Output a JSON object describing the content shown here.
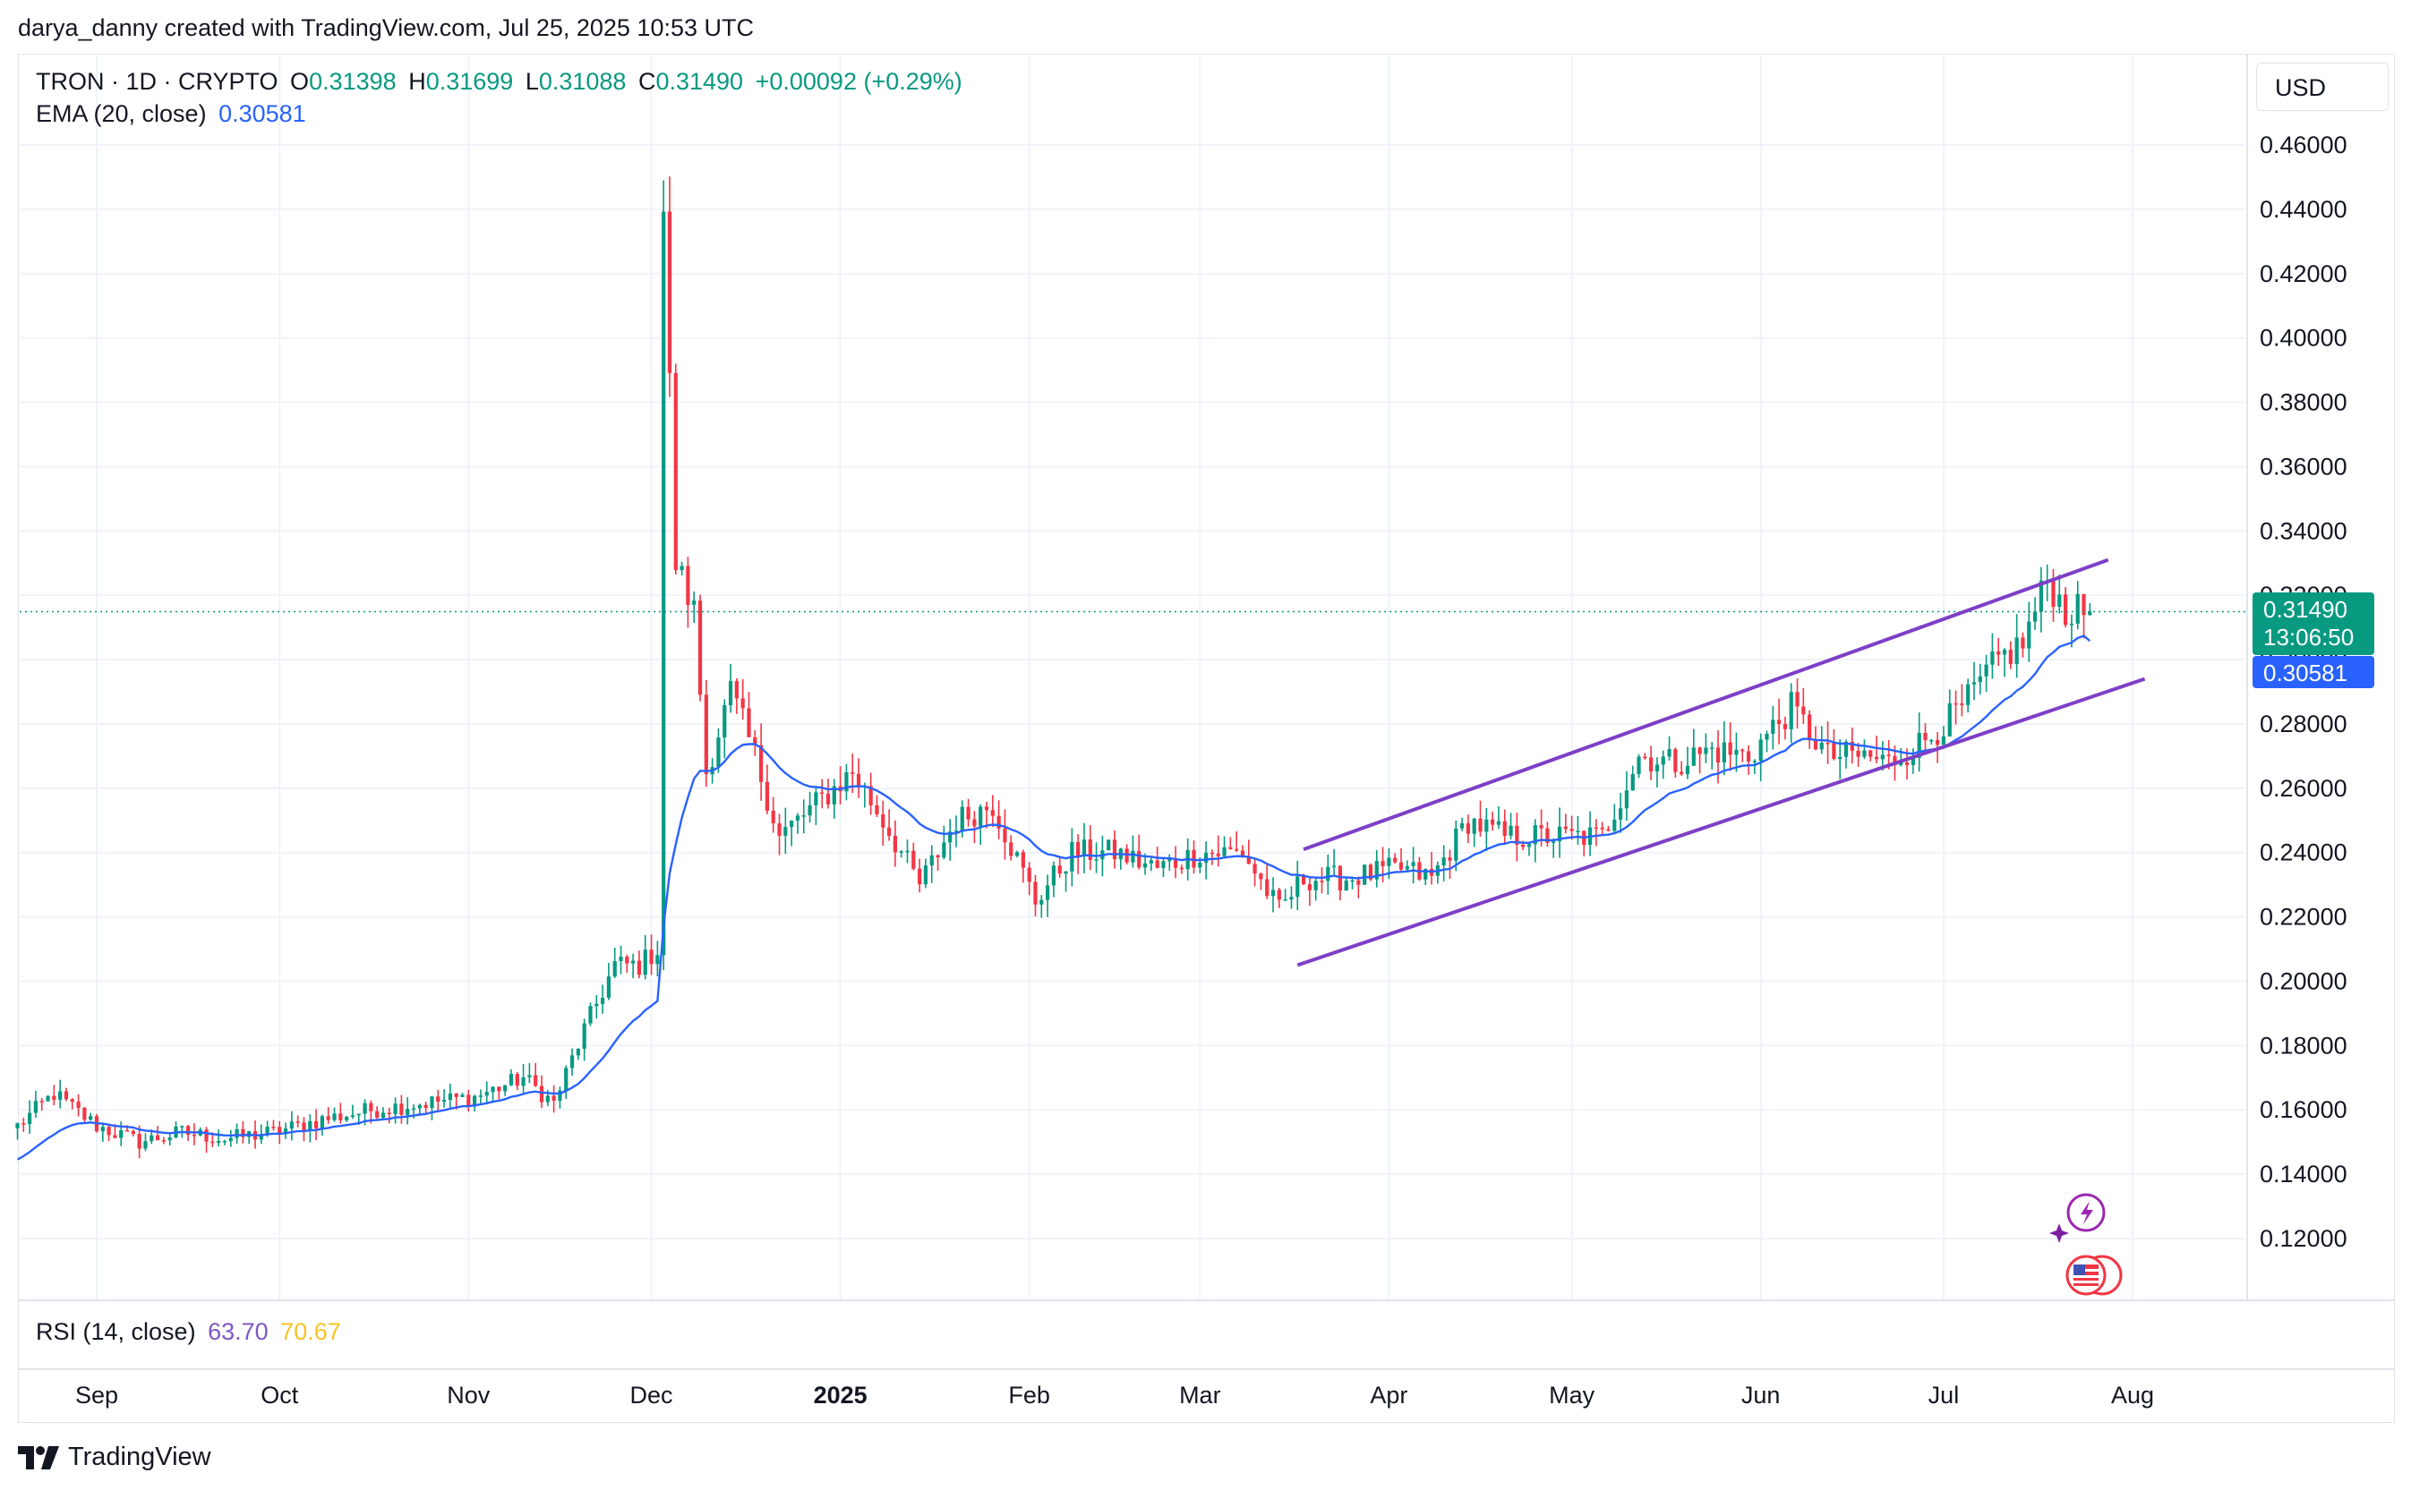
{
  "header": {
    "credit": "darya_danny created with TradingView.com, Jul 25, 2025 10:53 UTC"
  },
  "legend": {
    "symbol": "TRON · 1D · CRYPTO",
    "o_label": "O",
    "o_value": "0.31398",
    "h_label": "H",
    "h_value": "0.31699",
    "l_label": "L",
    "l_value": "0.31088",
    "c_label": "C",
    "c_value": "0.31490",
    "change": "+0.00092 (+0.29%)",
    "ema_label": "EMA (20, close)",
    "ema_value": "0.30581"
  },
  "rsi": {
    "label": "RSI (14, close)",
    "value": "63.70",
    "ma_value": "70.67"
  },
  "currency": "USD",
  "price_badge": {
    "price": "0.31490",
    "countdown": "13:06:50",
    "ema": "0.30581"
  },
  "brand": {
    "logo_text": "TradingView"
  },
  "colors": {
    "up": "#089981",
    "down": "#f23645",
    "ema": "#2962ff",
    "channel": "#7e3fc7",
    "grid": "#f0f3fa",
    "rsi": "#7e57c2",
    "rsi_ma": "#f7c325"
  },
  "chart_data": {
    "type": "candlestick",
    "ylim": [
      0.105,
      0.47
    ],
    "y_ticks": [
      "0.12000",
      "0.14000",
      "0.16000",
      "0.18000",
      "0.20000",
      "0.22000",
      "0.24000",
      "0.26000",
      "0.28000",
      "0.30000",
      "0.32000",
      "0.34000",
      "0.36000",
      "0.38000",
      "0.40000",
      "0.42000",
      "0.44000",
      "0.46000"
    ],
    "x_ticks": [
      {
        "label": "Sep",
        "date": "2024-09-01"
      },
      {
        "label": "Oct",
        "date": "2024-10-01"
      },
      {
        "label": "Nov",
        "date": "2024-11-01"
      },
      {
        "label": "Dec",
        "date": "2024-12-01"
      },
      {
        "label": "2025",
        "date": "2025-01-01",
        "bold": true
      },
      {
        "label": "Feb",
        "date": "2025-02-01"
      },
      {
        "label": "Mar",
        "date": "2025-03-01"
      },
      {
        "label": "Apr",
        "date": "2025-04-01"
      },
      {
        "label": "May",
        "date": "2025-05-01"
      },
      {
        "label": "Jun",
        "date": "2025-06-01"
      },
      {
        "label": "Jul",
        "date": "2025-07-01"
      },
      {
        "label": "Aug",
        "date": "2025-08-01"
      }
    ],
    "current_price": 0.3149,
    "ema_current": 0.30581,
    "close_path": [
      {
        "date": "2024-08-19",
        "close": 0.155
      },
      {
        "date": "2024-08-25",
        "close": 0.165
      },
      {
        "date": "2024-09-01",
        "close": 0.155
      },
      {
        "date": "2024-09-08",
        "close": 0.15
      },
      {
        "date": "2024-09-15",
        "close": 0.153
      },
      {
        "date": "2024-09-22",
        "close": 0.151
      },
      {
        "date": "2024-09-30",
        "close": 0.153
      },
      {
        "date": "2024-10-08",
        "close": 0.157
      },
      {
        "date": "2024-10-16",
        "close": 0.16
      },
      {
        "date": "2024-10-24",
        "close": 0.162
      },
      {
        "date": "2024-11-02",
        "close": 0.164
      },
      {
        "date": "2024-11-10",
        "close": 0.17
      },
      {
        "date": "2024-11-15",
        "close": 0.162
      },
      {
        "date": "2024-11-20",
        "close": 0.185
      },
      {
        "date": "2024-11-25",
        "close": 0.205
      },
      {
        "date": "2024-11-29",
        "close": 0.205
      },
      {
        "date": "2024-12-02",
        "close": 0.21
      },
      {
        "date": "2024-12-03",
        "close": 0.44
      },
      {
        "date": "2024-12-05",
        "close": 0.33
      },
      {
        "date": "2024-12-08",
        "close": 0.315
      },
      {
        "date": "2024-12-10",
        "close": 0.265
      },
      {
        "date": "2024-12-14",
        "close": 0.29
      },
      {
        "date": "2024-12-18",
        "close": 0.27
      },
      {
        "date": "2024-12-22",
        "close": 0.245
      },
      {
        "date": "2024-12-28",
        "close": 0.255
      },
      {
        "date": "2025-01-03",
        "close": 0.265
      },
      {
        "date": "2025-01-08",
        "close": 0.25
      },
      {
        "date": "2025-01-14",
        "close": 0.23
      },
      {
        "date": "2025-01-20",
        "close": 0.25
      },
      {
        "date": "2025-01-26",
        "close": 0.255
      },
      {
        "date": "2025-02-02",
        "close": 0.225
      },
      {
        "date": "2025-02-08",
        "close": 0.24
      },
      {
        "date": "2025-02-15",
        "close": 0.24
      },
      {
        "date": "2025-02-22",
        "close": 0.235
      },
      {
        "date": "2025-03-01",
        "close": 0.24
      },
      {
        "date": "2025-03-08",
        "close": 0.24
      },
      {
        "date": "2025-03-14",
        "close": 0.222
      },
      {
        "date": "2025-03-18",
        "close": 0.232
      },
      {
        "date": "2025-03-25",
        "close": 0.232
      },
      {
        "date": "2025-04-03",
        "close": 0.235
      },
      {
        "date": "2025-04-08",
        "close": 0.232
      },
      {
        "date": "2025-04-14",
        "close": 0.25
      },
      {
        "date": "2025-04-20",
        "close": 0.245
      },
      {
        "date": "2025-04-28",
        "close": 0.245
      },
      {
        "date": "2025-05-06",
        "close": 0.245
      },
      {
        "date": "2025-05-12",
        "close": 0.27
      },
      {
        "date": "2025-05-18",
        "close": 0.268
      },
      {
        "date": "2025-05-24",
        "close": 0.272
      },
      {
        "date": "2025-05-30",
        "close": 0.27
      },
      {
        "date": "2025-06-06",
        "close": 0.285
      },
      {
        "date": "2025-06-12",
        "close": 0.27
      },
      {
        "date": "2025-06-18",
        "close": 0.27
      },
      {
        "date": "2025-06-22",
        "close": 0.268
      },
      {
        "date": "2025-06-28",
        "close": 0.275
      },
      {
        "date": "2025-07-04",
        "close": 0.285
      },
      {
        "date": "2025-07-10",
        "close": 0.3
      },
      {
        "date": "2025-07-14",
        "close": 0.305
      },
      {
        "date": "2025-07-18",
        "close": 0.325
      },
      {
        "date": "2025-07-21",
        "close": 0.315
      },
      {
        "date": "2025-07-25",
        "close": 0.3149
      }
    ],
    "spike": {
      "date": "2024-12-03",
      "high": 0.449
    },
    "channel": {
      "upper": [
        {
          "date": "2025-03-18",
          "y": 0.241
        },
        {
          "date": "2025-07-28",
          "y": 0.331
        }
      ],
      "lower": [
        {
          "date": "2025-03-17",
          "y": 0.205
        },
        {
          "date": "2025-08-03",
          "y": 0.294
        }
      ]
    },
    "rsi_value": 63.7,
    "rsi_ma": 70.67
  }
}
